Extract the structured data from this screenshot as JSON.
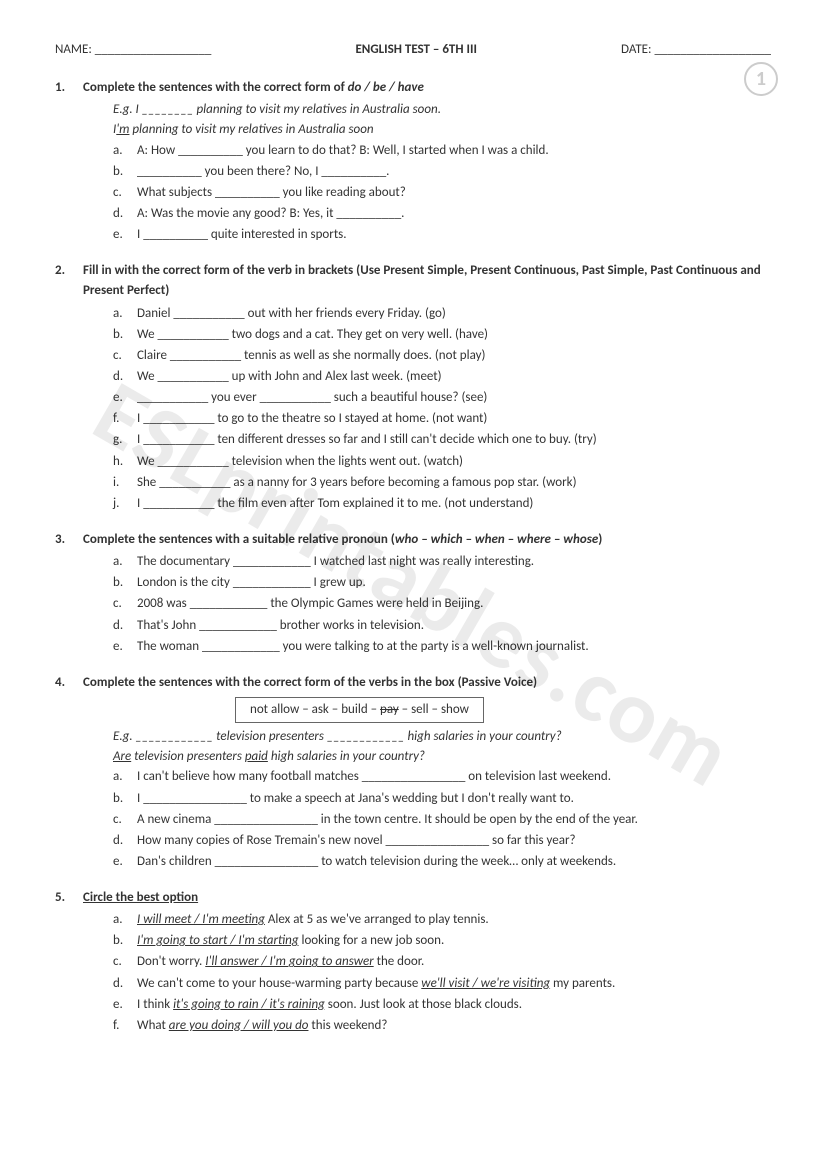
{
  "header": {
    "name_label": "NAME: __________________",
    "title": "ENGLISH TEST – 6TH III",
    "date_label": "DATE: __________________"
  },
  "page_number": "1",
  "watermark": "ESLprintables.com",
  "q1": {
    "num": "1.",
    "title_pre": "Complete the sentences with the correct form of ",
    "title_ital": "do / be / have",
    "eg_line": "E.g. I ________ planning to visit my relatives in Australia soon.",
    "eg_ans_pre": "I",
    "eg_ans_u": "'m",
    "eg_ans_post": " planning to visit my relatives in Australia soon",
    "items": [
      {
        "l": "a.",
        "t": "A: How __________ you learn to do that?        B: Well, I started when I was a child."
      },
      {
        "l": "b.",
        "t": "__________ you been there?  No, I __________."
      },
      {
        "l": "c.",
        "t": "What subjects __________ you like reading about?"
      },
      {
        "l": "d.",
        "t": "A: Was the movie any good?        B: Yes, it __________."
      },
      {
        "l": "e.",
        "t": "I __________ quite interested in sports."
      }
    ]
  },
  "q2": {
    "num": "2.",
    "title": "Fill in with the correct form of the verb in brackets (Use Present Simple, Present Continuous, Past Simple, Past Continuous and Present Perfect)",
    "items": [
      {
        "l": "a.",
        "t": "Daniel ___________ out with her friends every Friday. (go)"
      },
      {
        "l": "b.",
        "t": "We ___________ two dogs and a cat. They get on very well. (have)"
      },
      {
        "l": "c.",
        "t": "Claire ___________ tennis as well as she normally does. (not play)"
      },
      {
        "l": "d.",
        "t": "We ___________ up with John and Alex last week. (meet)"
      },
      {
        "l": "e.",
        "t": "___________ you ever ___________ such a beautiful house? (see)"
      },
      {
        "l": "f.",
        "t": "I ___________ to go to the theatre so I stayed at home. (not want)"
      },
      {
        "l": "g.",
        "t": "I ___________ ten different dresses so far and I still can't decide which one to buy. (try)"
      },
      {
        "l": "h.",
        "t": "We ___________ television when the lights went out. (watch)"
      },
      {
        "l": "i.",
        "t": "She ___________ as a nanny for 3 years before becoming a famous pop star. (work)"
      },
      {
        "l": "j.",
        "t": "I ___________ the film even after Tom explained it to me. (not understand)"
      }
    ]
  },
  "q3": {
    "num": "3.",
    "title_pre": "Complete the sentences with a suitable relative pronoun (",
    "title_ital": "who – which – when – where – whose",
    "title_post": ")",
    "items": [
      {
        "l": "a.",
        "t": "The documentary ____________ I watched last night was really interesting."
      },
      {
        "l": "b.",
        "t": "London is the city ____________ I grew up."
      },
      {
        "l": "c.",
        "t": "2008 was ____________ the Olympic Games were held in Beijing."
      },
      {
        "l": "d.",
        "t": "That's John ____________ brother works in television."
      },
      {
        "l": "e.",
        "t": "The woman ____________ you were talking to at the party is a well-known journalist."
      }
    ]
  },
  "q4": {
    "num": "4.",
    "title": "Complete the sentences with the correct form of the verbs in the box (Passive Voice)",
    "box_pre": "not allow – ask – build – ",
    "box_strike": "pay",
    "box_post": " – sell – show",
    "eg_line": "E.g. ____________ television presenters ____________ high salaries in your country?",
    "eg_ans_u1": "Are",
    "eg_ans_mid": " television presenters ",
    "eg_ans_u2": "paid",
    "eg_ans_post": " high salaries in your country?",
    "items": [
      {
        "l": "a.",
        "t": "I can't believe how many football matches ________________ on television last weekend."
      },
      {
        "l": "b.",
        "t": "I ________________ to make a speech at Jana's wedding but I don't really want to."
      },
      {
        "l": "c.",
        "t": "A new cinema ________________ in the town centre. It should be open by the end of the year."
      },
      {
        "l": "d.",
        "t": "How many copies of Rose Tremain's new novel ________________ so far this year?"
      },
      {
        "l": "e.",
        "t": "Dan's children ________________ to watch television during the week… only at weekends."
      }
    ]
  },
  "q5": {
    "num": "5.",
    "title": "Circle the best option",
    "items": [
      {
        "l": "a.",
        "u": "I will meet / I'm meeting",
        "t": " Alex at 5 as we've arranged to play tennis."
      },
      {
        "l": "b.",
        "u": "I'm going to start / I'm starting",
        "t": " looking for a new job soon."
      },
      {
        "l": "c.",
        "pre": "Don't worry. ",
        "u": "I'll answer / I'm going to answer",
        "t": " the door."
      },
      {
        "l": "d.",
        "pre": "We can't come to your house-warming party because ",
        "u": "we'll visit / we're visiting",
        "t": " my parents."
      },
      {
        "l": "e.",
        "pre": "I think ",
        "u": "it's going to rain / it's raining",
        "t": " soon. Just look at those black clouds."
      },
      {
        "l": "f.",
        "pre": "What ",
        "u": "are you doing / will you do",
        "t": " this weekend?"
      }
    ]
  }
}
